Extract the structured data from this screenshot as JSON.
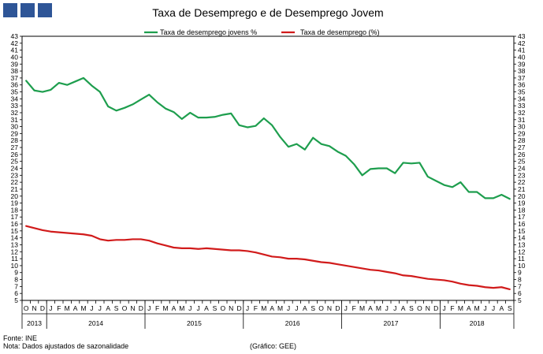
{
  "logo": {
    "color": "#2e5597"
  },
  "footer": {
    "source": "Fonte: INE",
    "note": "Nota: Dados ajustados de sazonalidade",
    "credit": "(Gráfico: GEE)"
  },
  "chart_data": {
    "type": "line",
    "title": "Taxa de Desemprego e de Desemprego Jovem",
    "xlabel": "",
    "ylabel": "",
    "ylim": [
      5,
      43
    ],
    "grid": false,
    "legend_position": "top-center",
    "yticks": [
      5,
      6,
      7,
      8,
      9,
      10,
      11,
      12,
      13,
      14,
      15,
      16,
      17,
      18,
      19,
      20,
      21,
      22,
      23,
      24,
      25,
      26,
      27,
      28,
      29,
      30,
      31,
      32,
      33,
      34,
      35,
      36,
      37,
      38,
      39,
      40,
      41,
      42,
      43
    ],
    "month_labels": [
      "O",
      "N",
      "D",
      "J",
      "F",
      "M",
      "A",
      "M",
      "J",
      "J",
      "A",
      "S",
      "O",
      "N",
      "D",
      "J",
      "F",
      "M",
      "A",
      "M",
      "J",
      "J",
      "A",
      "S",
      "O",
      "N",
      "D",
      "J",
      "F",
      "M",
      "A",
      "M",
      "J",
      "J",
      "A",
      "S",
      "O",
      "N",
      "D",
      "J",
      "F",
      "M",
      "A",
      "M",
      "J",
      "J",
      "A",
      "S",
      "O",
      "N",
      "D",
      "J",
      "F",
      "M",
      "A",
      "M",
      "J",
      "J",
      "A",
      "S"
    ],
    "year_groups": [
      {
        "label": "2013",
        "months": 3
      },
      {
        "label": "2014",
        "months": 12
      },
      {
        "label": "2015",
        "months": 12
      },
      {
        "label": "2016",
        "months": 12
      },
      {
        "label": "2017",
        "months": 12
      },
      {
        "label": "2018",
        "months": 9
      }
    ],
    "series": [
      {
        "name": "Taxa de desemprego jovens %",
        "color": "#1e9e4e",
        "values": [
          36.6,
          35.2,
          35.0,
          35.3,
          36.3,
          36.0,
          36.5,
          37.0,
          35.9,
          35.0,
          32.9,
          32.3,
          32.7,
          33.2,
          33.9,
          34.6,
          33.5,
          32.6,
          32.1,
          31.1,
          32.0,
          31.3,
          31.3,
          31.4,
          31.7,
          31.9,
          30.2,
          29.9,
          30.1,
          31.2,
          30.2,
          28.5,
          27.1,
          27.5,
          26.7,
          28.4,
          27.5,
          27.2,
          26.4,
          25.8,
          24.6,
          23.0,
          23.9,
          24.0,
          24.0,
          23.3,
          24.8,
          24.7,
          24.8,
          22.8,
          22.2,
          21.6,
          21.3,
          22.0,
          20.6,
          20.6,
          19.7,
          19.7,
          20.2,
          19.6
        ]
      },
      {
        "name": "Taxa de desemprego (%)",
        "color": "#d11b1b",
        "values": [
          15.7,
          15.4,
          15.1,
          14.9,
          14.8,
          14.7,
          14.6,
          14.5,
          14.3,
          13.8,
          13.6,
          13.7,
          13.7,
          13.8,
          13.8,
          13.6,
          13.2,
          12.9,
          12.6,
          12.5,
          12.5,
          12.4,
          12.5,
          12.4,
          12.3,
          12.2,
          12.2,
          12.1,
          11.9,
          11.6,
          11.3,
          11.2,
          11.0,
          11.0,
          10.9,
          10.7,
          10.5,
          10.4,
          10.2,
          10.0,
          9.8,
          9.6,
          9.4,
          9.3,
          9.1,
          8.9,
          8.6,
          8.5,
          8.3,
          8.1,
          8.0,
          7.9,
          7.7,
          7.4,
          7.2,
          7.1,
          6.9,
          6.8,
          6.9,
          6.6
        ]
      }
    ]
  }
}
